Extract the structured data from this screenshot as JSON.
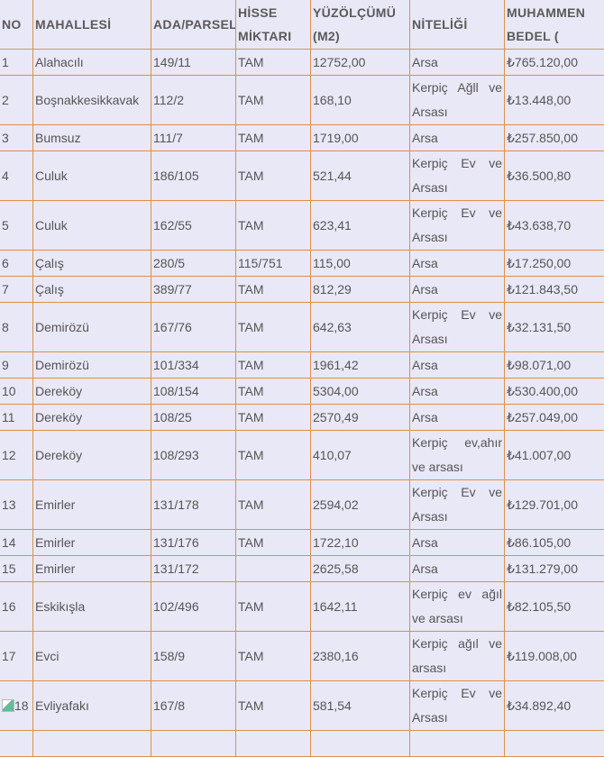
{
  "headers": [
    "NO",
    "MAHALLESİ",
    "ADA/PARSEL",
    "HİSSE MİKTARI",
    "YÜZÖLÇÜMÜ (M2)",
    "NİTELİĞİ",
    "MUHAMMEN BEDEL ("
  ],
  "rows": [
    {
      "no": "1",
      "mahalle": "Alahacılı",
      "ada": "149/11",
      "hisse": "TAM",
      "alan": "12752,00",
      "nitelik": "Arsa",
      "bedel": "₺765.120,00"
    },
    {
      "no": "2",
      "mahalle": "Boşnakkesikkavak",
      "ada": "112/2",
      "hisse": "TAM",
      "alan": "168,10",
      "nitelik": "Kerpiç Ağll ve Arsası",
      "bedel": "₺13.448,00"
    },
    {
      "no": "3",
      "mahalle": "Bumsuz",
      "ada": "111/7",
      "hisse": "TAM",
      "alan": "1719,00",
      "nitelik": "Arsa",
      "bedel": "₺257.850,00"
    },
    {
      "no": "4",
      "mahalle": "Culuk",
      "ada": "186/105",
      "hisse": "TAM",
      "alan": "521,44",
      "nitelik": "Kerpiç Ev ve Arsası",
      "bedel": "₺36.500,80"
    },
    {
      "no": "5",
      "mahalle": "Culuk",
      "ada": "162/55",
      "hisse": "TAM",
      "alan": "623,41",
      "nitelik": "Kerpiç Ev ve Arsası",
      "bedel": "₺43.638,70"
    },
    {
      "no": "6",
      "mahalle": "Çalış",
      "ada": "280/5",
      "hisse": "115/751",
      "alan": "115,00",
      "nitelik": "Arsa",
      "bedel": "₺17.250,00"
    },
    {
      "no": "7",
      "mahalle": "Çalış",
      "ada": "389/77",
      "hisse": "TAM",
      "alan": "812,29",
      "nitelik": "Arsa",
      "bedel": "₺121.843,50"
    },
    {
      "no": "8",
      "mahalle": "Demirözü",
      "ada": "167/76",
      "hisse": "TAM",
      "alan": "642,63",
      "nitelik": "Kerpiç Ev ve Arsası",
      "bedel": "₺32.131,50"
    },
    {
      "no": "9",
      "mahalle": "Demirözü",
      "ada": "101/334",
      "hisse": "TAM",
      "alan": "1961,42",
      "nitelik": "Arsa",
      "bedel": "₺98.071,00"
    },
    {
      "no": "10",
      "mahalle": "Dereköy",
      "ada": "108/154",
      "hisse": "TAM",
      "alan": "5304,00",
      "nitelik": "Arsa",
      "bedel": "₺530.400,00"
    },
    {
      "no": "11",
      "mahalle": "Dereköy",
      "ada": "108/25",
      "hisse": "TAM",
      "alan": "2570,49",
      "nitelik": "Arsa",
      "bedel": "₺257.049,00"
    },
    {
      "no": "12",
      "mahalle": "Dereköy",
      "ada": "108/293",
      "hisse": "TAM",
      "alan": "410,07",
      "nitelik": "Kerpiç ev,ahır ve arsası",
      "bedel": "₺41.007,00"
    },
    {
      "no": "13",
      "mahalle": "Emirler",
      "ada": "131/178",
      "hisse": "TAM",
      "alan": "2594,02",
      "nitelik": "Kerpiç Ev ve Arsası",
      "bedel": "₺129.701,00"
    },
    {
      "no": "14",
      "mahalle": "Emirler",
      "ada": "131/176",
      "hisse": "TAM",
      "alan": "1722,10",
      "nitelik": "Arsa",
      "bedel": "₺86.105,00"
    },
    {
      "no": "15",
      "mahalle": "Emirler",
      "ada": "131/172",
      "hisse": "",
      "alan": "2625,58",
      "nitelik": "Arsa",
      "bedel": "₺131.279,00"
    },
    {
      "no": "16",
      "mahalle": "Eskikışla",
      "ada": "102/496",
      "hisse": "TAM",
      "alan": "1642,11",
      "nitelik": "Kerpiç ev ağıl ve arsası",
      "bedel": "₺82.105,50"
    },
    {
      "no": "17",
      "mahalle": "Evci",
      "ada": "158/9",
      "hisse": "TAM",
      "alan": "2380,16",
      "nitelik": "Kerpiç ağıl ve arsası",
      "bedel": "₺119.008,00"
    },
    {
      "no": "18",
      "mahalle": "Evliyafakı",
      "ada": "167/8",
      "hisse": "TAM",
      "alan": "581,54",
      "nitelik": "Kerpiç Ev ve Arsası",
      "bedel": "₺34.892,40",
      "broken_image": true
    }
  ],
  "colors": {
    "border": "#d9924a",
    "background": "#e9e8f7",
    "text": "#555555"
  }
}
